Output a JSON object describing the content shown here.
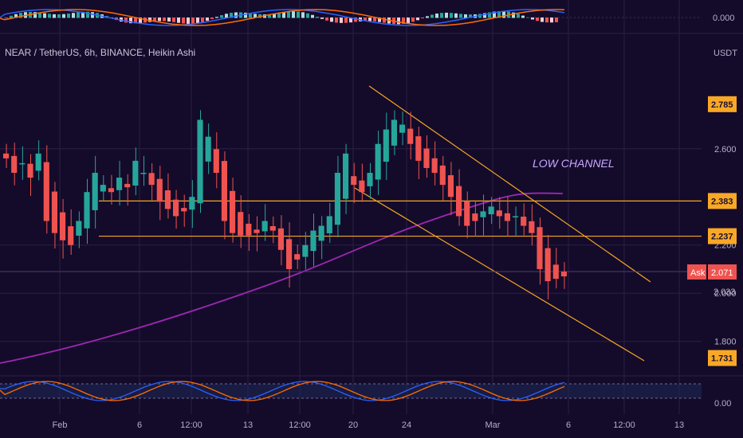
{
  "header": {
    "symbol_title": "NEAR / TetherUS, 6h, BINANCE, Heikin Ashi",
    "currency": "USDT",
    "macd_zero_label": "0.000",
    "stoch_zero_label": "0.00"
  },
  "annotations": {
    "channel_text": "LOW CHANNEL",
    "ask_label": "Ask",
    "ask_price": "2.071"
  },
  "price_tags": [
    {
      "label": "2.785",
      "value": 2.785
    },
    {
      "label": "2.383",
      "value": 2.383
    },
    {
      "label": "2.237",
      "value": 2.237
    },
    {
      "label": "1.731",
      "value": 1.731
    }
  ],
  "partial_tag": "2.033",
  "colors": {
    "background": "#140b2b",
    "up_candle": "#26a69a",
    "down_candle": "#ef5350",
    "orange_line": "#f5a623",
    "ma_line": "#9c27b0",
    "tag_bg": "#f9a825",
    "ask_bg": "#ef5350",
    "ask_text": "#ffffff"
  },
  "chart_data": {
    "type": "candlestick",
    "title": "NEAR / TetherUS, 6h, BINANCE, Heikin Ashi",
    "y_ticks": [
      2.6,
      2.2,
      2.0,
      1.8
    ],
    "y_tick_labels": [
      "2.600",
      "2.200",
      "2.000",
      "1.800"
    ],
    "x_tick_labels": [
      "Feb",
      "6",
      "12:00",
      "13",
      "12:00",
      "20",
      "24",
      "Mar",
      "6",
      "12:00",
      "13"
    ],
    "ylim": [
      1.68,
      2.92
    ],
    "horizontal_levels": [
      2.383,
      2.237
    ],
    "grid": true,
    "candles_close_path": [
      2.56,
      2.5,
      2.54,
      2.48,
      2.58,
      2.3,
      2.25,
      2.22,
      2.2,
      2.3,
      2.42,
      2.5,
      2.45,
      2.42,
      2.48,
      2.44,
      2.55,
      2.5,
      2.45,
      2.38,
      2.35,
      2.32,
      2.34,
      2.4,
      2.72,
      2.65,
      2.5,
      2.3,
      2.25,
      2.24,
      2.24,
      2.25,
      2.3,
      2.26,
      2.18,
      2.1,
      2.14,
      2.2,
      2.26,
      2.28,
      2.32,
      2.5,
      2.58,
      2.45,
      2.42,
      2.5,
      2.62,
      2.68,
      2.72,
      2.7,
      2.62,
      2.55,
      2.52,
      2.5,
      2.45,
      2.4,
      2.32,
      2.28,
      2.3,
      2.34,
      2.36,
      2.32,
      2.3,
      2.32,
      2.28,
      2.25,
      2.1,
      2.05,
      2.06,
      2.07
    ]
  }
}
